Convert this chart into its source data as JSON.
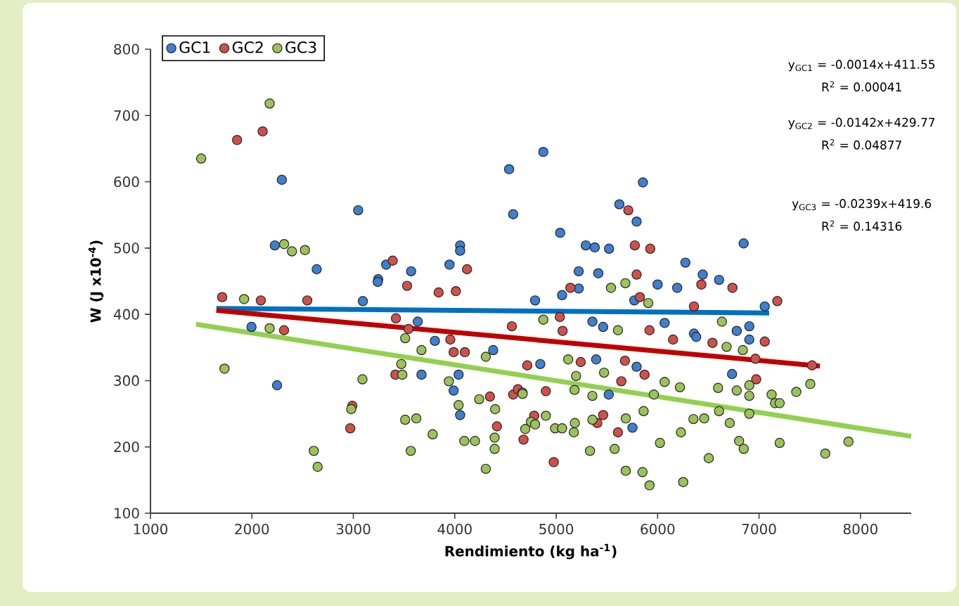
{
  "chart_data": {
    "type": "scatter",
    "xlabel": "Rendimiento (kg ha$^{-1}$)",
    "ylabel": "W (J x10$^{-4}$)",
    "xlim": [
      1000,
      8500
    ],
    "ylim": [
      100,
      800
    ],
    "xticks": [
      1000,
      2000,
      3000,
      4000,
      5000,
      6000,
      7000,
      8000
    ],
    "yticks": [
      100,
      200,
      300,
      400,
      500,
      600,
      700,
      800
    ],
    "legend": "top left",
    "series": [
      {
        "name": "GC1",
        "marker": "circle",
        "color": "#3f7fcf",
        "x": [
          2295,
          3048,
          4536,
          4576,
          2226,
          2639,
          3245,
          3324,
          3570,
          3948,
          4053,
          4053,
          4873,
          5855,
          5623,
          5793,
          5039,
          5292,
          5380,
          5521,
          6848,
          6274,
          5222,
          5415,
          6445,
          6606,
          6000,
          6193,
          5222,
          3094,
          3241,
          1996,
          2248,
          3672,
          3989,
          4053,
          3804,
          4038,
          4379,
          3635,
          4792,
          5058,
          5770,
          5357,
          5463,
          6069,
          6358,
          6380,
          6780,
          6904,
          6904,
          7056,
          5394,
          5793,
          5518,
          6734,
          5752,
          4843
        ],
        "values": [
          603,
          557,
          619,
          551,
          504,
          468,
          453,
          475,
          465,
          475,
          504,
          496,
          645,
          599,
          566,
          540,
          523,
          504,
          501,
          499,
          507,
          478,
          465,
          462,
          460,
          452,
          445,
          440,
          439,
          420,
          449,
          381,
          293,
          309,
          285,
          248,
          360,
          309,
          346,
          389,
          421,
          429,
          421,
          389,
          381,
          387,
          371,
          366,
          375,
          382,
          362,
          412,
          332,
          321,
          279,
          310,
          229,
          325
        ]
      },
      {
        "name": "GC2",
        "marker": "circle",
        "color": "#d0504a",
        "x": [
          1854,
          2106,
          3388,
          3530,
          4121,
          3841,
          4011,
          5711,
          5775,
          5927,
          5793,
          6431,
          6738,
          5140,
          1707,
          2088,
          2546,
          2317,
          2990,
          2970,
          3415,
          4416,
          4347,
          3989,
          4099,
          3956,
          4563,
          4576,
          4678,
          3420,
          3544,
          5825,
          5036,
          5920,
          6358,
          7056,
          7180,
          6541,
          6152,
          6964,
          5063,
          5242,
          5678,
          5871,
          5642,
          6972,
          7523,
          4976,
          4783,
          5463,
          5405,
          5609,
          4623,
          4898,
          4715
        ],
        "values": [
          663,
          676,
          481,
          443,
          468,
          433,
          435,
          557,
          504,
          499,
          460,
          445,
          440,
          440,
          426,
          421,
          421,
          376,
          262,
          228,
          309,
          231,
          276,
          343,
          343,
          362,
          382,
          279,
          211,
          394,
          378,
          426,
          396,
          376,
          412,
          359,
          420,
          357,
          362,
          333,
          375,
          328,
          330,
          309,
          299,
          302,
          323,
          177,
          247,
          248,
          236,
          222,
          287,
          284,
          323
        ]
      },
      {
        "name": "GC3",
        "marker": "circle",
        "color": "#9bc35a",
        "x": [
          1500,
          2175,
          2318,
          2395,
          2523,
          5682,
          5540,
          1923,
          2175,
          1730,
          3090,
          2979,
          2610,
          2648,
          3511,
          3621,
          3566,
          3782,
          3511,
          3672,
          3483,
          3473,
          3942,
          4038,
          4094,
          4199,
          4306,
          4393,
          4393,
          4398,
          4241,
          4306,
          4667,
          4695,
          5908,
          4873,
          5609,
          6634,
          6680,
          6840,
          5118,
          5196,
          5472,
          6069,
          6220,
          5963,
          5862,
          6904,
          6904,
          6596,
          6780,
          7505,
          7367,
          7124,
          7157,
          7203,
          6904,
          6711,
          6606,
          6459,
          6353,
          6230,
          6023,
          6803,
          6849,
          7203,
          7882,
          7653,
          6504,
          6252,
          5920,
          5851,
          5686,
          5576,
          5333,
          4751,
          4792,
          4898,
          4989,
          5058,
          5174,
          5184,
          5357,
          5686,
          4669,
          5357,
          5181
        ],
        "values": [
          635,
          718,
          506,
          495,
          497,
          447,
          440,
          423,
          379,
          318,
          302,
          257,
          194,
          170,
          241,
          243,
          194,
          219,
          364,
          346,
          309,
          325,
          299,
          263,
          209,
          209,
          167,
          197,
          214,
          257,
          272,
          336,
          282,
          227,
          417,
          392,
          376,
          389,
          351,
          346,
          332,
          307,
          312,
          298,
          290,
          279,
          254,
          293,
          277,
          289,
          285,
          295,
          283,
          279,
          266,
          266,
          250,
          236,
          254,
          243,
          242,
          222,
          206,
          209,
          197,
          206,
          208,
          190,
          183,
          147,
          142,
          162,
          164,
          197,
          194,
          238,
          234,
          247,
          228,
          228,
          222,
          236,
          241,
          243,
          280,
          277,
          286
        ]
      },
      {
        "type": "line",
        "marker": "none",
        "color": "#0070c0",
        "x": [
          1650,
          7100
        ],
        "values": [
          409,
          402
        ]
      },
      {
        "type": "line",
        "marker": "none",
        "color": "#c00000",
        "x": [
          1650,
          7600
        ],
        "values": [
          406,
          322
        ]
      },
      {
        "type": "line",
        "marker": "none",
        "color": "#92d050",
        "x": [
          1450,
          8500
        ],
        "values": [
          385,
          216
        ]
      }
    ],
    "annotations": [
      "y$_{GC1}$ = -0.0014x+411.55",
      "R$^{2}$ = 0.00041",
      "y$_{GC2}$ = -0.0142x+429.77",
      "R$^{2}$ = 0.04877",
      "y$_{GC3}$ = -0.0239x+419.6",
      "R$^{2}$ = 0.14316"
    ]
  }
}
